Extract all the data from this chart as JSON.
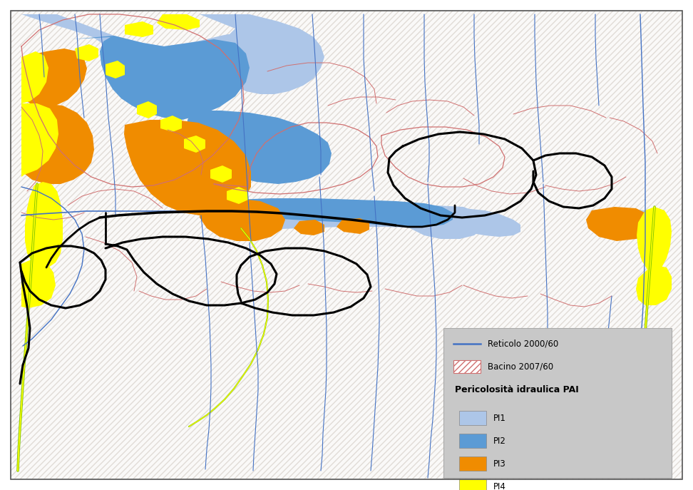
{
  "background_color": "#ffffff",
  "hatch_bg_color": "#f5f5f5",
  "hatch_color": "#cccccc",
  "PI1_color": "#adc6e8",
  "PI2_color": "#5b9bd5",
  "PI3_color": "#f08c00",
  "PI4_color": "#ffff00",
  "reticolo_color": "#4472c4",
  "bacino_color": "#d07070",
  "basin_border_color": "#000000",
  "green_river_color": "#7dc400",
  "legend_bg": "#c8c8c8",
  "legend_title": "Pericolosità idraulica PAI",
  "legend_line1": "Reticolo 2000/60",
  "legend_line2": "Bacino 2007/60",
  "legend_items": [
    "PI1",
    "PI2",
    "PI3",
    "PI4"
  ],
  "figsize": [
    9.72,
    6.87
  ],
  "dpi": 100
}
